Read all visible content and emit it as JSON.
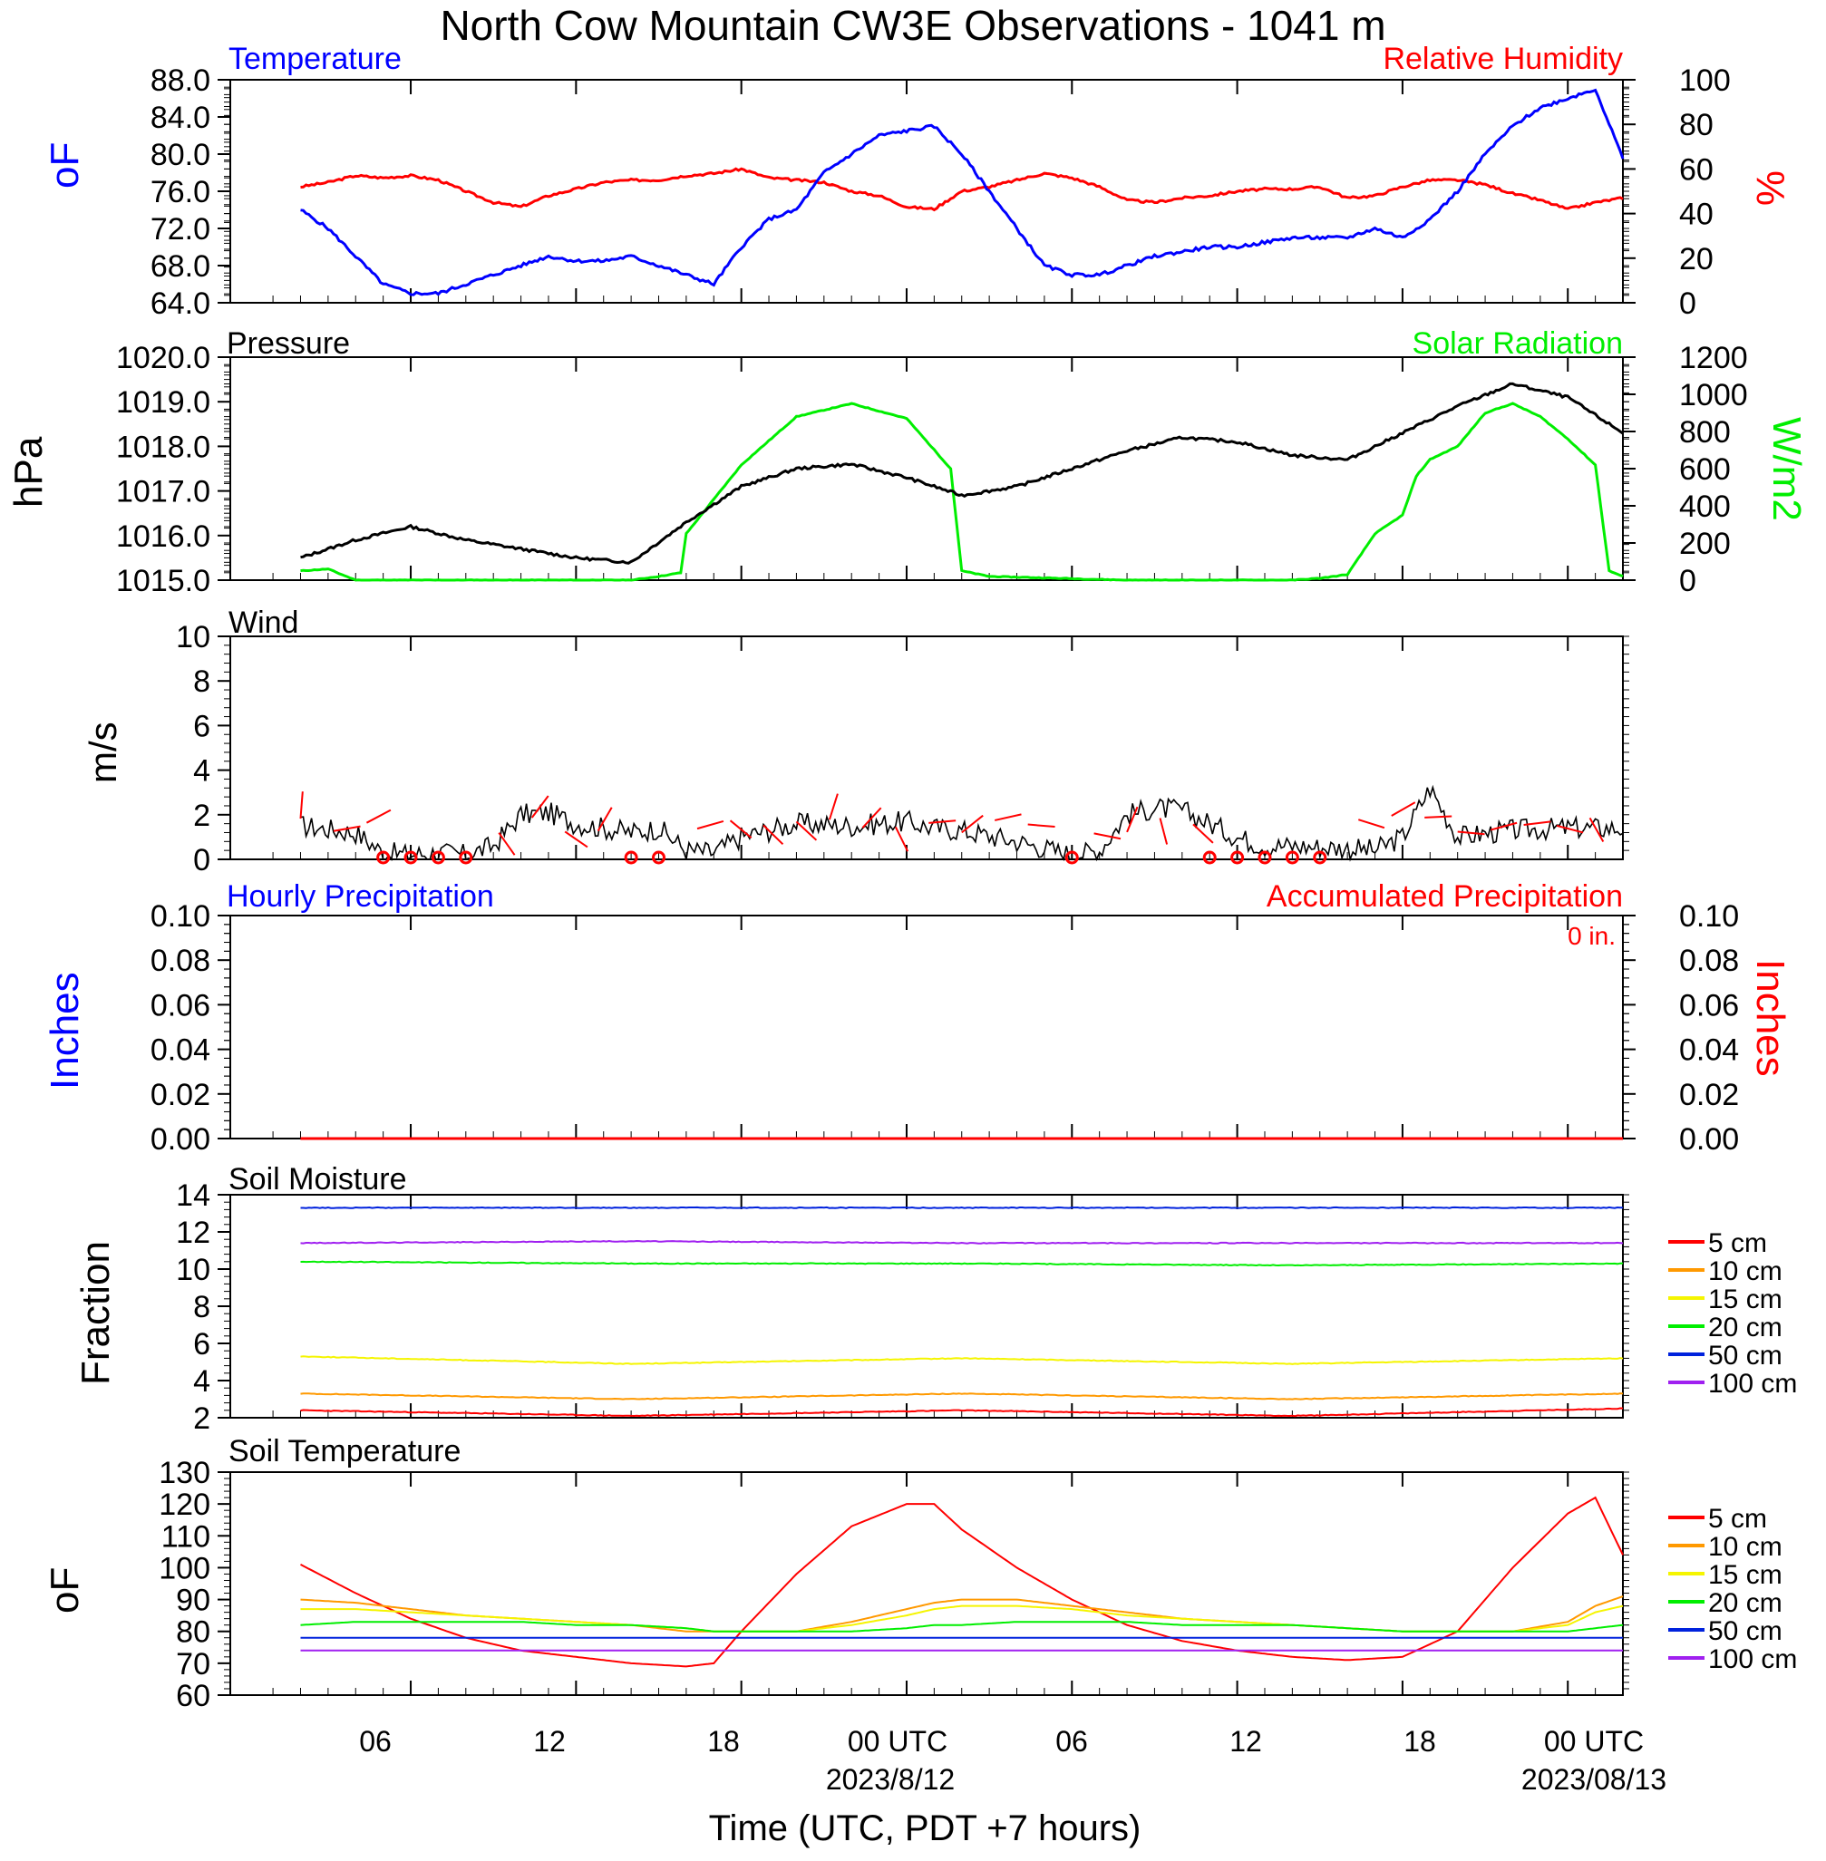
{
  "title": "North Cow Mountain CW3E Observations - 1041 m",
  "x_axis": {
    "label": "Time (UTC, PDT +7 hours)",
    "ticks": [
      "06",
      "12",
      "18",
      "00 UTC",
      "06",
      "12",
      "18",
      "00 UTC"
    ],
    "date_labels": [
      "2023/8/12",
      "2023/08/13"
    ]
  },
  "colors": {
    "blue": "#0000ff",
    "red": "#ff0000",
    "green": "#00ee00",
    "black": "#000000",
    "orange": "#ff9900",
    "yellow": "#f5f500",
    "purple": "#a020f0",
    "soil_blue": "#0022dd"
  },
  "soil_legend": [
    "5 cm",
    "10 cm",
    "15 cm",
    "20 cm",
    "50 cm",
    "100 cm"
  ],
  "panels": {
    "temperature": {
      "left_title": "Temperature",
      "right_title": "Relative Humidity",
      "left_unit": "oF",
      "right_unit": "%",
      "left_ticks": [
        "88.0",
        "84.0",
        "80.0",
        "76.0",
        "72.0",
        "68.0",
        "64.0"
      ],
      "right_ticks": [
        "100",
        "80",
        "60",
        "40",
        "20",
        "0"
      ]
    },
    "pressure": {
      "left_title": "Pressure",
      "right_title": "Solar Radiation",
      "left_unit": "hPa",
      "right_unit": "W/m2",
      "left_ticks": [
        "1020.0",
        "1019.0",
        "1018.0",
        "1017.0",
        "1016.0",
        "1015.0"
      ],
      "right_ticks": [
        "1200",
        "1000",
        "800",
        "600",
        "400",
        "200",
        "0"
      ]
    },
    "wind": {
      "title": "Wind",
      "unit": "m/s",
      "ticks": [
        "10",
        "8",
        "6",
        "4",
        "2",
        "0"
      ]
    },
    "precip": {
      "left_title": "Hourly Precipitation",
      "right_title": "Accumulated Precipitation",
      "left_unit": "Inches",
      "right_unit": "Inches",
      "total": "0 in.",
      "ticks": [
        "0.10",
        "0.08",
        "0.06",
        "0.04",
        "0.02",
        "0.00"
      ]
    },
    "soil_moisture": {
      "title": "Soil Moisture",
      "unit": "Fraction",
      "ticks": [
        "14",
        "12",
        "10",
        "8",
        "6",
        "4",
        "2"
      ]
    },
    "soil_temperature": {
      "title": "Soil Temperature",
      "unit": "oF",
      "ticks": [
        "130",
        "120",
        "110",
        "100",
        "90",
        "80",
        "70",
        "60"
      ]
    }
  },
  "chart_data": [
    {
      "type": "line",
      "title": "Temperature",
      "ylabel": "oF",
      "ylim": [
        64,
        88
      ],
      "x_hours_since_start": [
        0,
        1,
        2,
        3,
        4,
        5,
        6,
        7,
        8,
        9,
        10,
        11,
        12,
        13,
        14,
        15,
        16,
        17,
        18,
        19,
        20,
        21,
        22,
        23,
        24,
        25,
        26,
        27,
        28,
        29,
        30,
        31,
        32,
        33,
        34,
        35,
        36,
        37,
        38,
        39,
        40,
        41,
        42,
        43,
        44,
        45,
        46,
        47,
        48
      ],
      "series": [
        {
          "name": "Temperature",
          "values": [
            74,
            72,
            69,
            66,
            65,
            65,
            66,
            67,
            68,
            69,
            68.5,
            68.5,
            69,
            68,
            67,
            66,
            70,
            73,
            74,
            78,
            80,
            82,
            82.5,
            83,
            80,
            76,
            72,
            68,
            67,
            67,
            68,
            69,
            69.5,
            70,
            70,
            70.5,
            71,
            71,
            71,
            72,
            71,
            73,
            76,
            80,
            83,
            85,
            86,
            87,
            79.5
          ]
        }
      ]
    },
    {
      "type": "line",
      "title": "Relative Humidity",
      "ylabel": "%",
      "ylim": [
        0,
        100
      ],
      "x_hours_since_start": [
        0,
        1,
        2,
        3,
        4,
        5,
        6,
        7,
        8,
        9,
        10,
        11,
        12,
        13,
        14,
        15,
        16,
        17,
        18,
        19,
        20,
        21,
        22,
        23,
        24,
        25,
        26,
        27,
        28,
        29,
        30,
        31,
        32,
        33,
        34,
        35,
        36,
        37,
        38,
        39,
        40,
        41,
        42,
        43,
        44,
        45,
        46,
        47,
        48
      ],
      "series": [
        {
          "name": "Relative Humidity",
          "values": [
            52,
            54,
            57,
            56,
            57,
            55,
            50,
            45,
            43,
            48,
            51,
            54,
            55,
            55,
            57,
            58,
            60,
            56,
            55,
            54,
            50,
            48,
            43,
            42,
            50,
            52,
            55,
            58,
            56,
            52,
            46,
            45,
            47,
            48,
            50,
            51,
            51,
            52,
            47,
            48,
            52,
            55,
            55,
            53,
            49,
            46,
            42,
            45,
            47
          ]
        }
      ]
    },
    {
      "type": "line",
      "title": "Pressure",
      "ylabel": "hPa",
      "ylim": [
        1015,
        1020
      ],
      "x_hours_since_start": [
        0,
        2,
        4,
        6,
        8,
        10,
        12,
        14,
        16,
        18,
        20,
        22,
        24,
        26,
        28,
        30,
        32,
        34,
        36,
        38,
        40,
        42,
        44,
        46,
        48
      ],
      "series": [
        {
          "name": "Pressure",
          "values": [
            1015.5,
            1015.9,
            1016.2,
            1015.9,
            1015.7,
            1015.5,
            1015.4,
            1016.3,
            1017.1,
            1017.5,
            1017.6,
            1017.3,
            1016.9,
            1017.1,
            1017.5,
            1017.9,
            1018.2,
            1018.1,
            1017.8,
            1017.7,
            1018.3,
            1018.9,
            1019.4,
            1019.1,
            1018.3
          ]
        }
      ]
    },
    {
      "type": "line",
      "title": "Solar Radiation",
      "ylabel": "W/m2",
      "ylim": [
        0,
        1200
      ],
      "x_hours_since_start": [
        0,
        1,
        2,
        6,
        12,
        13,
        13.8,
        14,
        16,
        18,
        20,
        22,
        23.6,
        24,
        25,
        30,
        36,
        37,
        38,
        39,
        40,
        40.5,
        41,
        42,
        43,
        44,
        45,
        46,
        47,
        47.5,
        48
      ],
      "series": [
        {
          "name": "Solar Radiation",
          "values": [
            50,
            60,
            0,
            0,
            0,
            20,
            40,
            250,
            620,
            880,
            950,
            870,
            600,
            50,
            20,
            0,
            0,
            10,
            30,
            250,
            350,
            560,
            650,
            720,
            900,
            950,
            880,
            760,
            620,
            50,
            20
          ]
        }
      ]
    },
    {
      "type": "line",
      "title": "Wind",
      "ylabel": "m/s",
      "ylim": [
        0,
        10
      ],
      "x_hours_since_start": [
        0,
        2,
        3,
        4,
        5,
        6,
        7,
        8,
        9,
        10,
        12,
        13,
        14,
        15,
        16,
        18,
        20,
        22,
        23,
        24,
        26,
        28,
        29,
        30,
        31,
        32,
        34,
        35,
        36,
        38,
        39,
        40,
        41,
        42,
        44,
        46,
        48
      ],
      "series": [
        {
          "name": "Wind speed",
          "values": [
            1.5,
            1.2,
            0.3,
            0.2,
            0.3,
            0.2,
            0.6,
            2.0,
            2.1,
            1.6,
            1.2,
            1.4,
            0.4,
            0.3,
            1.0,
            1.6,
            1.5,
            1.7,
            1.4,
            1.3,
            0.8,
            0.2,
            0.4,
            2.0,
            2.3,
            2.2,
            1.0,
            0.6,
            0.6,
            0.5,
            0.4,
            1.0,
            3.2,
            1.0,
            1.3,
            1.4,
            1.4
          ]
        }
      ]
    },
    {
      "type": "line",
      "title": "Hourly Precipitation",
      "ylabel": "Inches",
      "ylim": [
        0,
        0.1
      ],
      "x_hours_since_start": [
        0,
        48
      ],
      "series": [
        {
          "name": "Accumulated Precipitation",
          "values": [
            0,
            0
          ]
        }
      ]
    },
    {
      "type": "line",
      "title": "Soil Moisture",
      "ylabel": "Fraction",
      "ylim": [
        2,
        14
      ],
      "x_hours_since_start": [
        0,
        12,
        24,
        36,
        48
      ],
      "series": [
        {
          "name": "5 cm",
          "values": [
            2.4,
            2.1,
            2.4,
            2.1,
            2.5
          ]
        },
        {
          "name": "10 cm",
          "values": [
            3.3,
            3.0,
            3.3,
            3.0,
            3.3
          ]
        },
        {
          "name": "15 cm",
          "values": [
            5.3,
            4.9,
            5.2,
            4.9,
            5.2
          ]
        },
        {
          "name": "20 cm",
          "values": [
            10.4,
            10.3,
            10.3,
            10.2,
            10.3
          ]
        },
        {
          "name": "50 cm",
          "values": [
            13.3,
            13.3,
            13.3,
            13.3,
            13.3
          ]
        },
        {
          "name": "100 cm",
          "values": [
            11.4,
            11.5,
            11.4,
            11.4,
            11.4
          ]
        }
      ]
    },
    {
      "type": "line",
      "title": "Soil Temperature",
      "ylabel": "oF",
      "ylim": [
        60,
        130
      ],
      "x_hours_since_start": [
        0,
        2,
        4,
        6,
        8,
        10,
        12,
        14,
        15,
        16,
        18,
        20,
        22,
        23,
        24,
        26,
        28,
        30,
        32,
        34,
        36,
        38,
        40,
        42,
        44,
        46,
        47,
        48
      ],
      "series": [
        {
          "name": "5 cm",
          "values": [
            101,
            92,
            84,
            78,
            74,
            72,
            70,
            69,
            70,
            80,
            98,
            113,
            120,
            120,
            112,
            100,
            90,
            82,
            77,
            74,
            72,
            71,
            72,
            80,
            100,
            117,
            122,
            104
          ]
        },
        {
          "name": "10 cm",
          "values": [
            90,
            89,
            87,
            85,
            84,
            83,
            82,
            80,
            80,
            80,
            80,
            83,
            87,
            89,
            90,
            90,
            88,
            86,
            84,
            83,
            82,
            81,
            80,
            80,
            80,
            83,
            88,
            91
          ]
        },
        {
          "name": "15 cm",
          "values": [
            87,
            87,
            86,
            85,
            84,
            83,
            82,
            81,
            80,
            80,
            80,
            82,
            85,
            87,
            88,
            88,
            87,
            85,
            84,
            83,
            82,
            81,
            80,
            80,
            80,
            82,
            86,
            88
          ]
        },
        {
          "name": "20 cm",
          "values": [
            82,
            83,
            83,
            83,
            83,
            82,
            82,
            81,
            80,
            80,
            80,
            80,
            81,
            82,
            82,
            83,
            83,
            83,
            82,
            82,
            82,
            81,
            80,
            80,
            80,
            80,
            81,
            82
          ]
        },
        {
          "name": "50 cm",
          "values": [
            78,
            78,
            78,
            78,
            78,
            78,
            78,
            78,
            78,
            78,
            78,
            78,
            78,
            78,
            78,
            78,
            78,
            78,
            78,
            78,
            78,
            78,
            78,
            78,
            78,
            78,
            78,
            78
          ]
        },
        {
          "name": "100 cm",
          "values": [
            74,
            74,
            74,
            74,
            74,
            74,
            74,
            74,
            74,
            74,
            74,
            74,
            74,
            74,
            74,
            74,
            74,
            74,
            74,
            74,
            74,
            74,
            74,
            74,
            74,
            74,
            74,
            74
          ]
        }
      ]
    }
  ]
}
